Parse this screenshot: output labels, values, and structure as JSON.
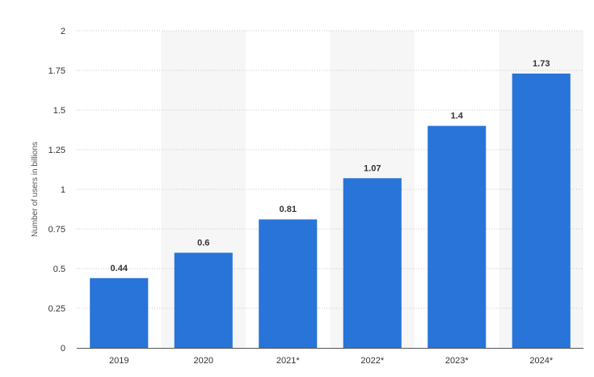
{
  "chart_data": {
    "type": "bar",
    "categories": [
      "2019",
      "2020",
      "2021*",
      "2022*",
      "2023*",
      "2024*"
    ],
    "values": [
      0.44,
      0.6,
      0.81,
      1.07,
      1.4,
      1.73
    ],
    "data_labels": [
      "0.44",
      "0.6",
      "0.81",
      "1.07",
      "1.4",
      "1.73"
    ],
    "yticks": [
      "0",
      "0.25",
      "0.5",
      "0.75",
      "1",
      "1.25",
      "1.5",
      "1.75",
      "2"
    ],
    "ylim": [
      0,
      2
    ],
    "ylabel": "Number of users in billions",
    "xlabel": "",
    "title": "",
    "grid": true,
    "legend": "none",
    "colors": {
      "bar": "#2874d9",
      "band": "#f6f6f6",
      "grid": "#c8c8c8",
      "axis": "#555555"
    }
  }
}
